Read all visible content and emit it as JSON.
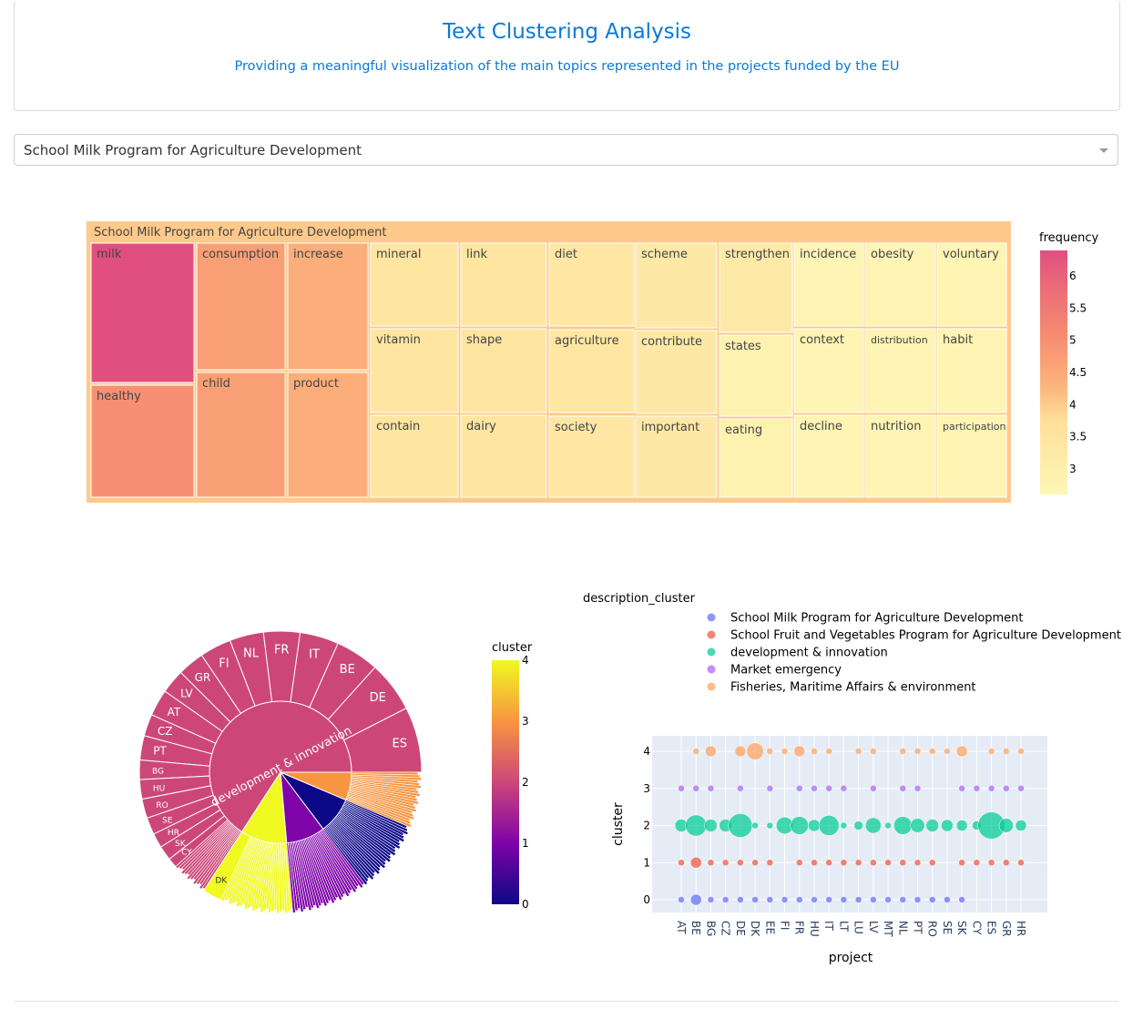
{
  "header": {
    "title": "Text Clustering Analysis",
    "subtitle": "Providing a meaningful visualization of the main topics represented in the projects funded by the EU"
  },
  "dropdown": {
    "selected": "School Milk Program for Agriculture Development"
  },
  "chart_data": [
    {
      "type": "treemap",
      "root": "School Milk Program for Agriculture Development",
      "colorbar_title": "frequency",
      "colorbar_ticks": [
        "3",
        "3.5",
        "4",
        "4.5",
        "5",
        "5.5",
        "6"
      ],
      "color_range": [
        2.6,
        6.4
      ],
      "items": [
        {
          "word": "milk",
          "frequency": 6.4
        },
        {
          "word": "healthy",
          "frequency": 5.0
        },
        {
          "word": "consumption",
          "frequency": 4.7
        },
        {
          "word": "child",
          "frequency": 4.7
        },
        {
          "word": "increase",
          "frequency": 4.4
        },
        {
          "word": "product",
          "frequency": 4.4
        },
        {
          "word": "mineral",
          "frequency": 3.5
        },
        {
          "word": "vitamin",
          "frequency": 3.5
        },
        {
          "word": "contain",
          "frequency": 3.5
        },
        {
          "word": "link",
          "frequency": 3.5
        },
        {
          "word": "shape",
          "frequency": 3.5
        },
        {
          "word": "dairy",
          "frequency": 3.5
        },
        {
          "word": "diet",
          "frequency": 3.4
        },
        {
          "word": "agriculture",
          "frequency": 3.4
        },
        {
          "word": "society",
          "frequency": 3.4
        },
        {
          "word": "scheme",
          "frequency": 3.3
        },
        {
          "word": "contribute",
          "frequency": 3.3
        },
        {
          "word": "important",
          "frequency": 3.3
        },
        {
          "word": "strengthen",
          "frequency": 3.2
        },
        {
          "word": "states",
          "frequency": 2.8
        },
        {
          "word": "eating",
          "frequency": 2.8
        },
        {
          "word": "incidence",
          "frequency": 2.7
        },
        {
          "word": "context",
          "frequency": 2.7
        },
        {
          "word": "decline",
          "frequency": 2.7
        },
        {
          "word": "obesity",
          "frequency": 2.7
        },
        {
          "word": "distribution",
          "frequency": 2.7
        },
        {
          "word": "nutrition",
          "frequency": 2.7
        },
        {
          "word": "voluntary",
          "frequency": 2.7
        },
        {
          "word": "habit",
          "frequency": 2.7
        },
        {
          "word": "participation",
          "frequency": 2.7
        }
      ]
    },
    {
      "type": "sunburst",
      "colorbar_title": "cluster",
      "colorbar_ticks": [
        "0",
        "1",
        "2",
        "3",
        "4"
      ],
      "center_label": "development & innovation",
      "clusters": [
        {
          "label": "development & innovation",
          "cluster": 2,
          "value": 237,
          "children": [
            {
              "label": "ES",
              "value": 27
            },
            {
              "label": "DE",
              "value": 21
            },
            {
              "label": "BE",
              "value": 18
            },
            {
              "label": "IT",
              "value": 16
            },
            {
              "label": "FR",
              "value": 15
            },
            {
              "label": "NL",
              "value": 14
            },
            {
              "label": "FI",
              "value": 13
            },
            {
              "label": "GR",
              "value": 11
            },
            {
              "label": "LV",
              "value": 10
            },
            {
              "label": "AT",
              "value": 11
            },
            {
              "label": "CZ",
              "value": 9
            },
            {
              "label": "PT",
              "value": 10
            },
            {
              "label": "BG",
              "value": 8
            },
            {
              "label": "HU",
              "value": 8
            },
            {
              "label": "RO",
              "value": 8
            },
            {
              "label": "SE",
              "value": 7
            },
            {
              "label": "HR",
              "value": 6
            },
            {
              "label": "SK",
              "value": 6
            },
            {
              "label": "CY",
              "value": 4
            }
          ]
        },
        {
          "label": "Fisheries, Maritime Affairs & environment",
          "cluster": 4,
          "value": 38,
          "children": [
            {
              "label": "DK",
              "value": 8
            }
          ]
        },
        {
          "label": "School Fruit and Vegetables Program for Agriculture Development",
          "cluster": 1,
          "value": 32
        },
        {
          "label": "School Milk Program for Agriculture Development",
          "cluster": 0,
          "value": 30
        },
        {
          "label": "Market emergency",
          "cluster": 3,
          "value": 23
        }
      ]
    },
    {
      "type": "scatter",
      "legend_title": "description_cluster",
      "legend_placement": "top",
      "xlabel": "project",
      "ylabel": "cluster",
      "y_ticks": [
        0,
        1,
        2,
        3,
        4
      ],
      "categories": [
        "AT",
        "BE",
        "BG",
        "CZ",
        "DE",
        "DK",
        "EE",
        "FI",
        "FR",
        "HU",
        "IT",
        "LT",
        "LU",
        "LV",
        "MT",
        "NL",
        "PT",
        "RO",
        "SE",
        "SK",
        "CY",
        "ES",
        "GR",
        "HR"
      ],
      "series": [
        {
          "name": "School Milk Program for Agriculture Development",
          "cluster": 0,
          "color": "#636efa",
          "sizes": [
            1,
            3,
            1,
            1,
            1,
            1,
            1,
            1,
            1,
            1,
            1,
            1,
            1,
            1,
            1,
            1,
            1,
            1,
            1,
            1,
            null,
            null,
            null,
            null
          ]
        },
        {
          "name": "School Fruit and Vegetables Program for Agriculture Development",
          "cluster": 1,
          "color": "#ef553b",
          "sizes": [
            1,
            3,
            1,
            1,
            1,
            1,
            1,
            null,
            1,
            1,
            1,
            1,
            1,
            1,
            1,
            1,
            1,
            1,
            null,
            1,
            1,
            1,
            1,
            1
          ]
        },
        {
          "name": "development & innovation",
          "cluster": 2,
          "color": "#00cc96",
          "sizes": [
            4,
            11,
            4,
            4,
            14,
            1,
            1,
            7,
            8,
            3.5,
            10,
            1,
            2,
            6,
            1,
            8,
            5,
            4,
            3.5,
            3,
            2,
            18,
            5,
            3
          ]
        },
        {
          "name": "Market emergency",
          "cluster": 3,
          "color": "#ab63fa",
          "sizes": [
            1,
            1,
            1,
            null,
            1,
            null,
            1,
            null,
            1,
            1,
            1,
            1,
            null,
            1,
            null,
            1,
            1,
            null,
            null,
            1,
            1,
            1,
            1,
            1
          ]
        },
        {
          "name": "Fisheries, Maritime Affairs & environment",
          "cluster": 4,
          "color": "#ffa15a",
          "sizes": [
            null,
            1,
            3,
            null,
            3,
            7,
            1,
            1,
            3,
            1,
            1,
            null,
            1,
            1,
            null,
            1,
            1,
            1,
            1,
            3,
            null,
            1,
            1,
            1
          ]
        }
      ]
    }
  ]
}
